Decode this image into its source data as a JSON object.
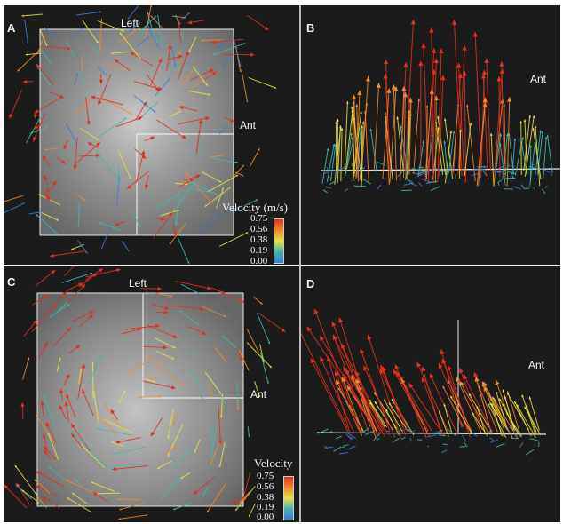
{
  "panels": {
    "a": {
      "letter": "A",
      "label_left": "Left",
      "label_ant": "Ant",
      "scale_title": "Velocity (m/s)",
      "ticks": [
        "0.75",
        "0.56",
        "0.38",
        "0.19",
        "0.00"
      ]
    },
    "b": {
      "letter": "B",
      "label_ant": "Ant"
    },
    "c": {
      "letter": "C",
      "label_left": "Left",
      "label_ant": "Ant",
      "scale_title": "Velocity",
      "ticks": [
        "0.75",
        "0.56",
        "0.38",
        "0.19",
        "0.00"
      ]
    },
    "d": {
      "letter": "D",
      "label_ant": "Ant"
    }
  },
  "colors": {
    "background": "#1b1b1b",
    "velocity_low": "#3b7bd6",
    "velocity_mid_low": "#3fb8b0",
    "velocity_mid": "#e8e040",
    "velocity_mid_high": "#f08a2a",
    "velocity_high": "#e0301e",
    "frame": "#e8e8e8"
  }
}
